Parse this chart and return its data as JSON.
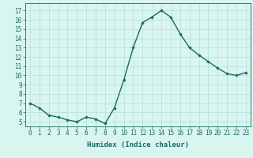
{
  "x": [
    0,
    1,
    2,
    3,
    4,
    5,
    6,
    7,
    8,
    9,
    10,
    11,
    12,
    13,
    14,
    15,
    16,
    17,
    18,
    19,
    20,
    21,
    22,
    23
  ],
  "y": [
    7.0,
    6.5,
    5.7,
    5.5,
    5.2,
    5.0,
    5.5,
    5.3,
    4.8,
    6.5,
    9.5,
    13.0,
    15.7,
    16.3,
    17.0,
    16.3,
    14.5,
    13.0,
    12.2,
    11.5,
    10.8,
    10.2,
    10.0,
    10.3
  ],
  "line_color": "#1a6b5e",
  "marker": "D",
  "marker_size": 1.8,
  "bg_color": "#d8f5f0",
  "grid_color": "#b8ddd8",
  "xlabel": "Humidex (Indice chaleur)",
  "ylim": [
    4.5,
    17.8
  ],
  "xlim": [
    -0.5,
    23.5
  ],
  "yticks": [
    5,
    6,
    7,
    8,
    9,
    10,
    11,
    12,
    13,
    14,
    15,
    16,
    17
  ],
  "xticks": [
    0,
    1,
    2,
    3,
    4,
    5,
    6,
    7,
    8,
    9,
    10,
    11,
    12,
    13,
    14,
    15,
    16,
    17,
    18,
    19,
    20,
    21,
    22,
    23
  ],
  "xlabel_fontsize": 6.5,
  "tick_fontsize": 5.5,
  "line_width": 1.0
}
